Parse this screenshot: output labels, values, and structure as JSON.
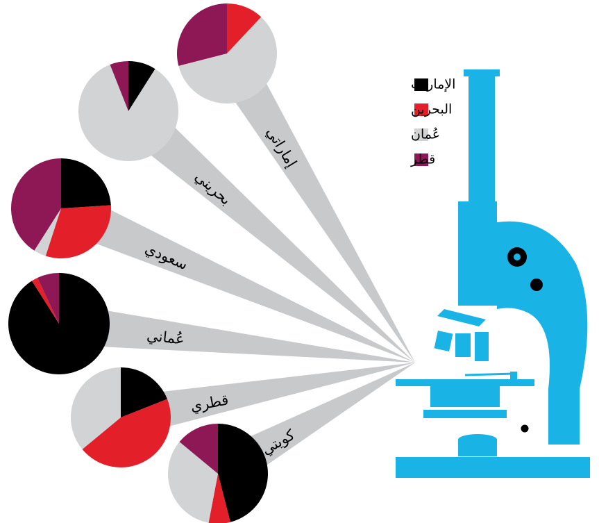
{
  "legend": {
    "labels": [
      "الإمارات",
      "البحرين",
      "عُمان",
      "قطر"
    ],
    "colors": [
      "#000000",
      "#e3202a",
      "#d1d3d4",
      "#8e1756"
    ]
  },
  "chart_data": [
    {
      "type": "pie",
      "title": "إماراتي",
      "values": [
        0,
        12,
        59,
        29
      ]
    },
    {
      "type": "pie",
      "title": "بحريني",
      "values": [
        9,
        0,
        85,
        6
      ]
    },
    {
      "type": "pie",
      "title": "سعودي",
      "values": [
        24,
        31,
        4,
        41
      ]
    },
    {
      "type": "pie",
      "title": "عُماني",
      "values": [
        91,
        2,
        0,
        7
      ]
    },
    {
      "type": "pie",
      "title": "قطري",
      "values": [
        19,
        45,
        36,
        0
      ]
    },
    {
      "type": "pie",
      "title": "كويتي",
      "values": [
        46,
        7,
        33,
        14
      ]
    }
  ]
}
